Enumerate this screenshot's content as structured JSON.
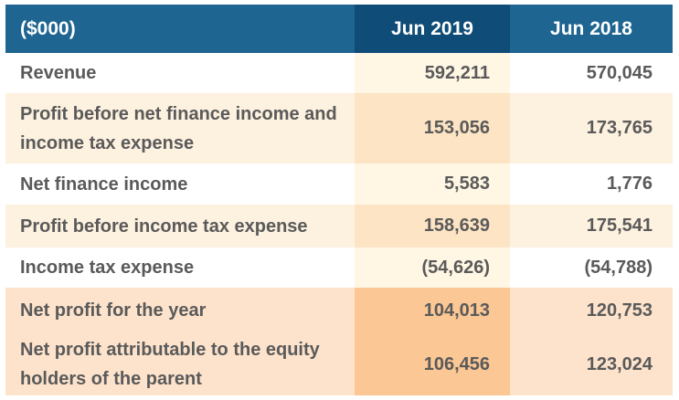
{
  "table": {
    "headers": [
      "($000)",
      "Jun 2019",
      "Jun 2018"
    ],
    "rows": [
      {
        "label": "Revenue",
        "jun2019": "592,211",
        "jun2018": "570,045"
      },
      {
        "label": "Profit before net finance income and income tax expense",
        "jun2019": "153,056",
        "jun2018": "173,765"
      },
      {
        "label": "Net finance income",
        "jun2019": "5,583",
        "jun2018": "1,776"
      },
      {
        "label": "Profit before income tax expense",
        "jun2019": "158,639",
        "jun2018": "175,541"
      },
      {
        "label": "Income tax expense",
        "jun2019": "(54,626)",
        "jun2018": "(54,788)"
      },
      {
        "label": "Net profit for the year",
        "jun2019": "104,013",
        "jun2018": "120,753"
      },
      {
        "label": "Net profit attributable to the equity holders of the parent",
        "jun2019": "106,456",
        "jun2018": "123,024"
      }
    ]
  },
  "colors": {
    "header_blue": "#1f6592",
    "header_dark_blue": "#0f4c78",
    "text_grey": "#5a5a5a",
    "row_tan": "#fdf1df",
    "row_peach": "#fde3cc",
    "col_highlight_orange": "#fbc795"
  }
}
